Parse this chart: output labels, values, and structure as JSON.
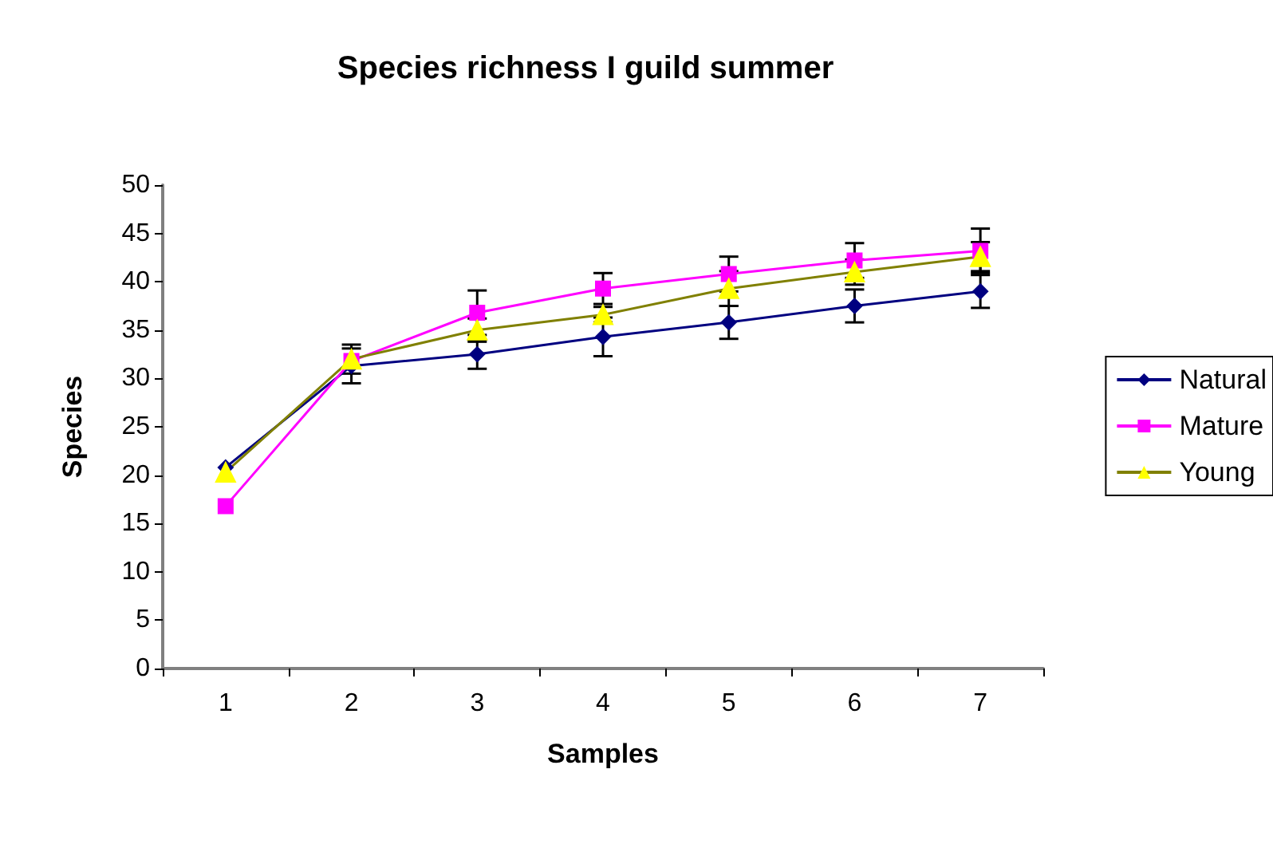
{
  "chart_data": {
    "type": "line",
    "title": "Species richness I guild summer",
    "xlabel": "Samples",
    "ylabel": "Species",
    "categories": [
      "1",
      "2",
      "3",
      "4",
      "5",
      "6",
      "7"
    ],
    "series": [
      {
        "name": "Natural",
        "color": "#000080",
        "marker": "diamond",
        "values": [
          20.8,
          31.3,
          32.5,
          34.3,
          35.8,
          37.5,
          39.0
        ],
        "errors": [
          null,
          1.8,
          1.5,
          2.0,
          1.7,
          1.7,
          1.7
        ]
      },
      {
        "name": "Mature",
        "color": "#ff00ff",
        "marker": "square",
        "values": [
          16.8,
          31.8,
          36.8,
          39.3,
          40.8,
          42.2,
          43.2
        ],
        "errors": [
          null,
          null,
          2.3,
          1.6,
          1.8,
          1.8,
          2.3
        ]
      },
      {
        "name": "Young",
        "color": "#808000",
        "marker": "triangle",
        "values": [
          20.3,
          32.0,
          35.0,
          36.6,
          39.3,
          41.0,
          42.6
        ],
        "errors": [
          null,
          1.5,
          1.2,
          0.8,
          1.8,
          1.3,
          1.5
        ]
      }
    ],
    "ylim": [
      0,
      50
    ],
    "yticks": [
      0,
      5,
      10,
      15,
      20,
      25,
      30,
      35,
      40,
      45,
      50
    ],
    "grid": false,
    "legend": "right"
  }
}
